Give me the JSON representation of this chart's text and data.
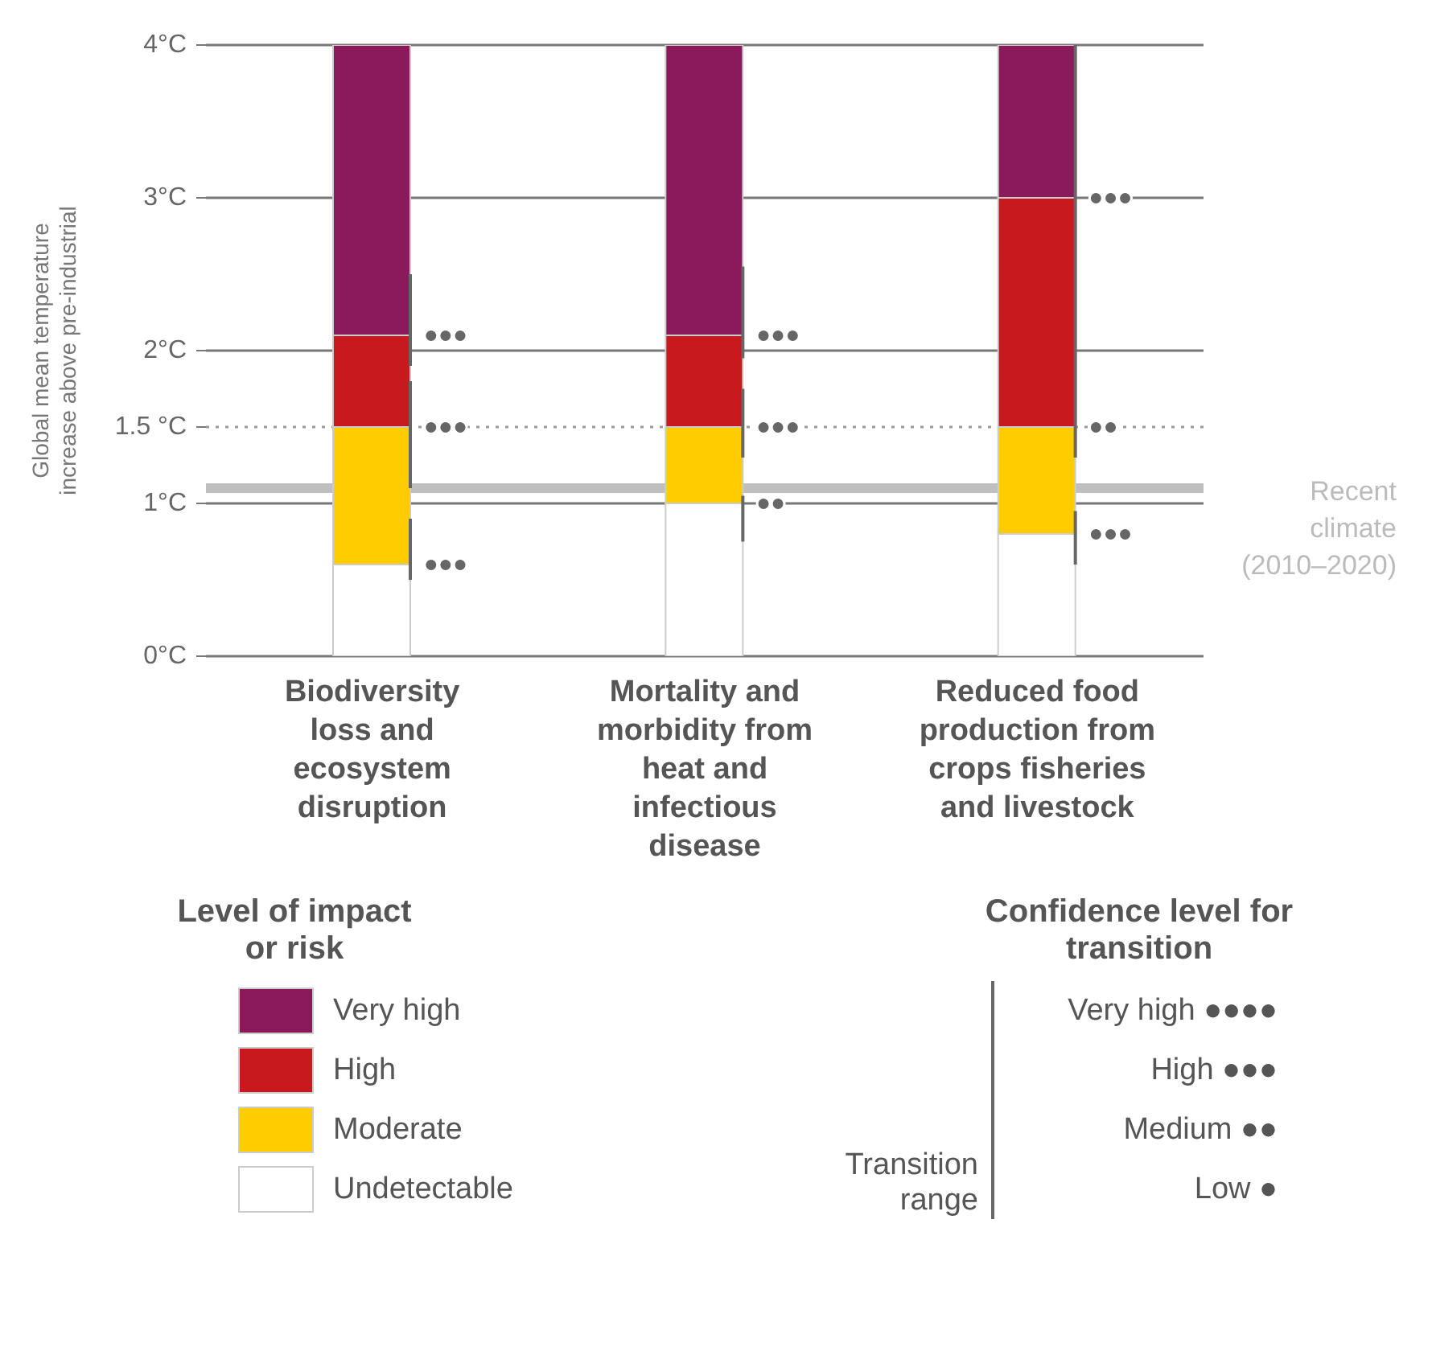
{
  "chart_data": {
    "type": "bar",
    "stacked": true,
    "ylabel": "Global mean temperature increase above pre-industrial",
    "categories": [
      "Biodiversity loss and ecosystem disruption",
      "Mortality and morbidity from heat and infectious disease",
      "Reduced food production from crops fisheries and livestock"
    ],
    "series": [
      {
        "name": "Undetectable",
        "color": "#ffffff",
        "values": [
          0.6,
          1.0,
          0.8
        ],
        "errors": [
          [
            0.5,
            0.9
          ],
          [
            0.75,
            1.05
          ],
          [
            0.6,
            0.95
          ]
        ]
      },
      {
        "name": "Moderate",
        "color": "#ffcc00",
        "values": [
          0.9,
          0.5,
          0.7
        ],
        "errors": [
          [
            1.1,
            1.8
          ],
          [
            1.3,
            1.75
          ],
          [
            1.3,
            2.0
          ]
        ]
      },
      {
        "name": "High",
        "color": "#c8191f",
        "values": [
          0.6,
          0.6,
          1.5
        ],
        "errors": [
          [
            1.9,
            2.5
          ],
          [
            1.95,
            2.55
          ],
          [
            2.0,
            4.0
          ]
        ]
      },
      {
        "name": "Very high",
        "color": "#8b1a5b",
        "values": [
          1.9,
          1.9,
          1.0
        ]
      }
    ],
    "ylim": [
      0,
      4
    ],
    "yticks": [
      {
        "value": 0,
        "label": "0°C"
      },
      {
        "value": 1,
        "label": "1°C"
      },
      {
        "value": 1.5,
        "label": "1.5 °C"
      },
      {
        "value": 2,
        "label": "2°C"
      },
      {
        "value": 3,
        "label": "3°C"
      },
      {
        "value": 4,
        "label": "4°C"
      }
    ],
    "grid": "y",
    "ref_lines": [
      {
        "axis": "y",
        "value": 1.5,
        "color": "#999999",
        "line_style": "dotted"
      },
      {
        "axis": "y",
        "value": 1.1,
        "color": "#bfbfbf",
        "label": "Recent climate (2010–2020)"
      }
    ],
    "legend": "bottom",
    "legend_title": "Level of impact or risk",
    "annotations": [
      "Confidence level for transition",
      "Very high ●●●●",
      "High ●●●",
      "Medium ●●",
      "Low ●",
      "Transition range",
      {
        "text": "●●●",
        "x": "Biodiversity loss and ecosystem disruption",
        "y": 0.6
      },
      {
        "text": "●●●",
        "x": "Biodiversity loss and ecosystem disruption",
        "y": 1.5
      },
      {
        "text": "●●●",
        "x": "Biodiversity loss and ecosystem disruption",
        "y": 2.1
      },
      {
        "text": "●●",
        "x": "Mortality and morbidity from heat and infectious disease",
        "y": 1.0
      },
      {
        "text": "●●●",
        "x": "Mortality and morbidity from heat and infectious disease",
        "y": 1.5
      },
      {
        "text": "●●●",
        "x": "Mortality and morbidity from heat and infectious disease",
        "y": 2.1
      },
      {
        "text": "●●●",
        "x": "Reduced food production from crops fisheries and livestock",
        "y": 0.8
      },
      {
        "text": "●●",
        "x": "Reduced food production from crops fisheries and livestock",
        "y": 1.5
      },
      {
        "text": "●●●",
        "x": "Reduced food production from crops fisheries and livestock",
        "y": 3.0
      }
    ]
  }
}
